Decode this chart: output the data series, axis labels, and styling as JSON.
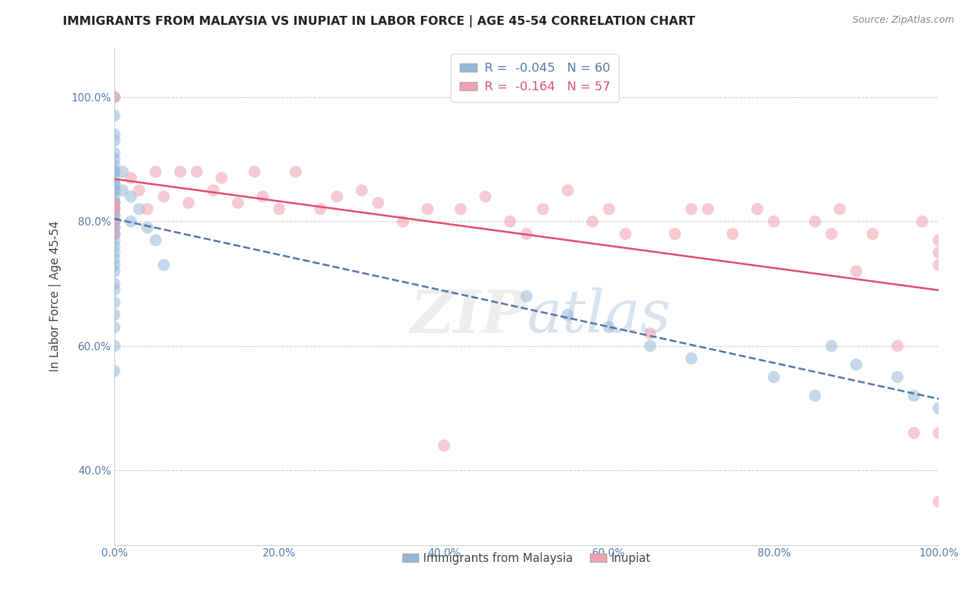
{
  "title": "IMMIGRANTS FROM MALAYSIA VS INUPIAT IN LABOR FORCE | AGE 45-54 CORRELATION CHART",
  "source": "Source: ZipAtlas.com",
  "ylabel": "In Labor Force | Age 45-54",
  "blue_label": "Immigrants from Malaysia",
  "pink_label": "Inupiat",
  "blue_R": -0.045,
  "blue_N": 60,
  "pink_R": -0.164,
  "pink_N": 57,
  "blue_color": "#94b8d9",
  "pink_color": "#f0a0b0",
  "blue_trend_color": "#5577aa",
  "pink_trend_color": "#e05070",
  "background_color": "#ffffff",
  "xlim": [
    0.0,
    1.0
  ],
  "ylim": [
    0.28,
    1.08
  ],
  "yticks": [
    0.4,
    0.6,
    0.8,
    1.0
  ],
  "ytick_labels": [
    "40.0%",
    "60.0%",
    "80.0%",
    "100.0%"
  ],
  "xtick_labels": [
    "0.0%",
    "20.0%",
    "40.0%",
    "60.0%",
    "80.0%",
    "100.0%"
  ],
  "xticks": [
    0.0,
    0.2,
    0.4,
    0.6,
    0.8,
    1.0
  ],
  "blue_x": [
    0.0,
    0.0,
    0.0,
    0.0,
    0.0,
    0.0,
    0.0,
    0.0,
    0.0,
    0.0,
    0.0,
    0.0,
    0.0,
    0.0,
    0.0,
    0.0,
    0.0,
    0.0,
    0.0,
    0.0,
    0.0,
    0.0,
    0.0,
    0.0,
    0.0,
    0.0,
    0.0,
    0.0,
    0.0,
    0.0,
    0.0,
    0.0,
    0.0,
    0.0,
    0.0,
    0.0,
    0.0,
    0.0,
    0.0,
    0.0,
    0.01,
    0.01,
    0.02,
    0.02,
    0.03,
    0.04,
    0.05,
    0.06,
    0.5,
    0.55,
    0.6,
    0.65,
    0.7,
    0.8,
    0.85,
    0.87,
    0.9,
    0.95,
    0.97,
    1.0
  ],
  "blue_y": [
    1.0,
    0.97,
    0.94,
    0.93,
    0.91,
    0.9,
    0.89,
    0.88,
    0.88,
    0.87,
    0.86,
    0.86,
    0.85,
    0.85,
    0.84,
    0.83,
    0.83,
    0.82,
    0.82,
    0.81,
    0.81,
    0.8,
    0.8,
    0.79,
    0.79,
    0.78,
    0.78,
    0.77,
    0.76,
    0.75,
    0.74,
    0.73,
    0.72,
    0.7,
    0.69,
    0.67,
    0.65,
    0.63,
    0.6,
    0.56,
    0.88,
    0.85,
    0.84,
    0.8,
    0.82,
    0.79,
    0.77,
    0.73,
    0.68,
    0.65,
    0.63,
    0.6,
    0.58,
    0.55,
    0.52,
    0.6,
    0.57,
    0.55,
    0.52,
    0.5
  ],
  "pink_x": [
    0.0,
    0.0,
    0.0,
    0.0,
    0.0,
    0.0,
    0.02,
    0.03,
    0.04,
    0.05,
    0.06,
    0.08,
    0.09,
    0.1,
    0.12,
    0.13,
    0.15,
    0.17,
    0.18,
    0.2,
    0.22,
    0.25,
    0.27,
    0.3,
    0.32,
    0.35,
    0.38,
    0.4,
    0.42,
    0.45,
    0.48,
    0.5,
    0.52,
    0.55,
    0.58,
    0.6,
    0.62,
    0.65,
    0.68,
    0.7,
    0.72,
    0.75,
    0.78,
    0.8,
    0.85,
    0.87,
    0.88,
    0.9,
    0.92,
    0.95,
    0.97,
    0.98,
    1.0,
    1.0,
    1.0,
    1.0,
    1.0
  ],
  "pink_y": [
    1.0,
    0.82,
    0.78,
    0.82,
    0.8,
    0.83,
    0.87,
    0.85,
    0.82,
    0.88,
    0.84,
    0.88,
    0.83,
    0.88,
    0.85,
    0.87,
    0.83,
    0.88,
    0.84,
    0.82,
    0.88,
    0.82,
    0.84,
    0.85,
    0.83,
    0.8,
    0.82,
    0.44,
    0.82,
    0.84,
    0.8,
    0.78,
    0.82,
    0.85,
    0.8,
    0.82,
    0.78,
    0.62,
    0.78,
    0.82,
    0.82,
    0.78,
    0.82,
    0.8,
    0.8,
    0.78,
    0.82,
    0.72,
    0.78,
    0.6,
    0.46,
    0.8,
    0.73,
    0.77,
    0.75,
    0.46,
    0.35
  ]
}
